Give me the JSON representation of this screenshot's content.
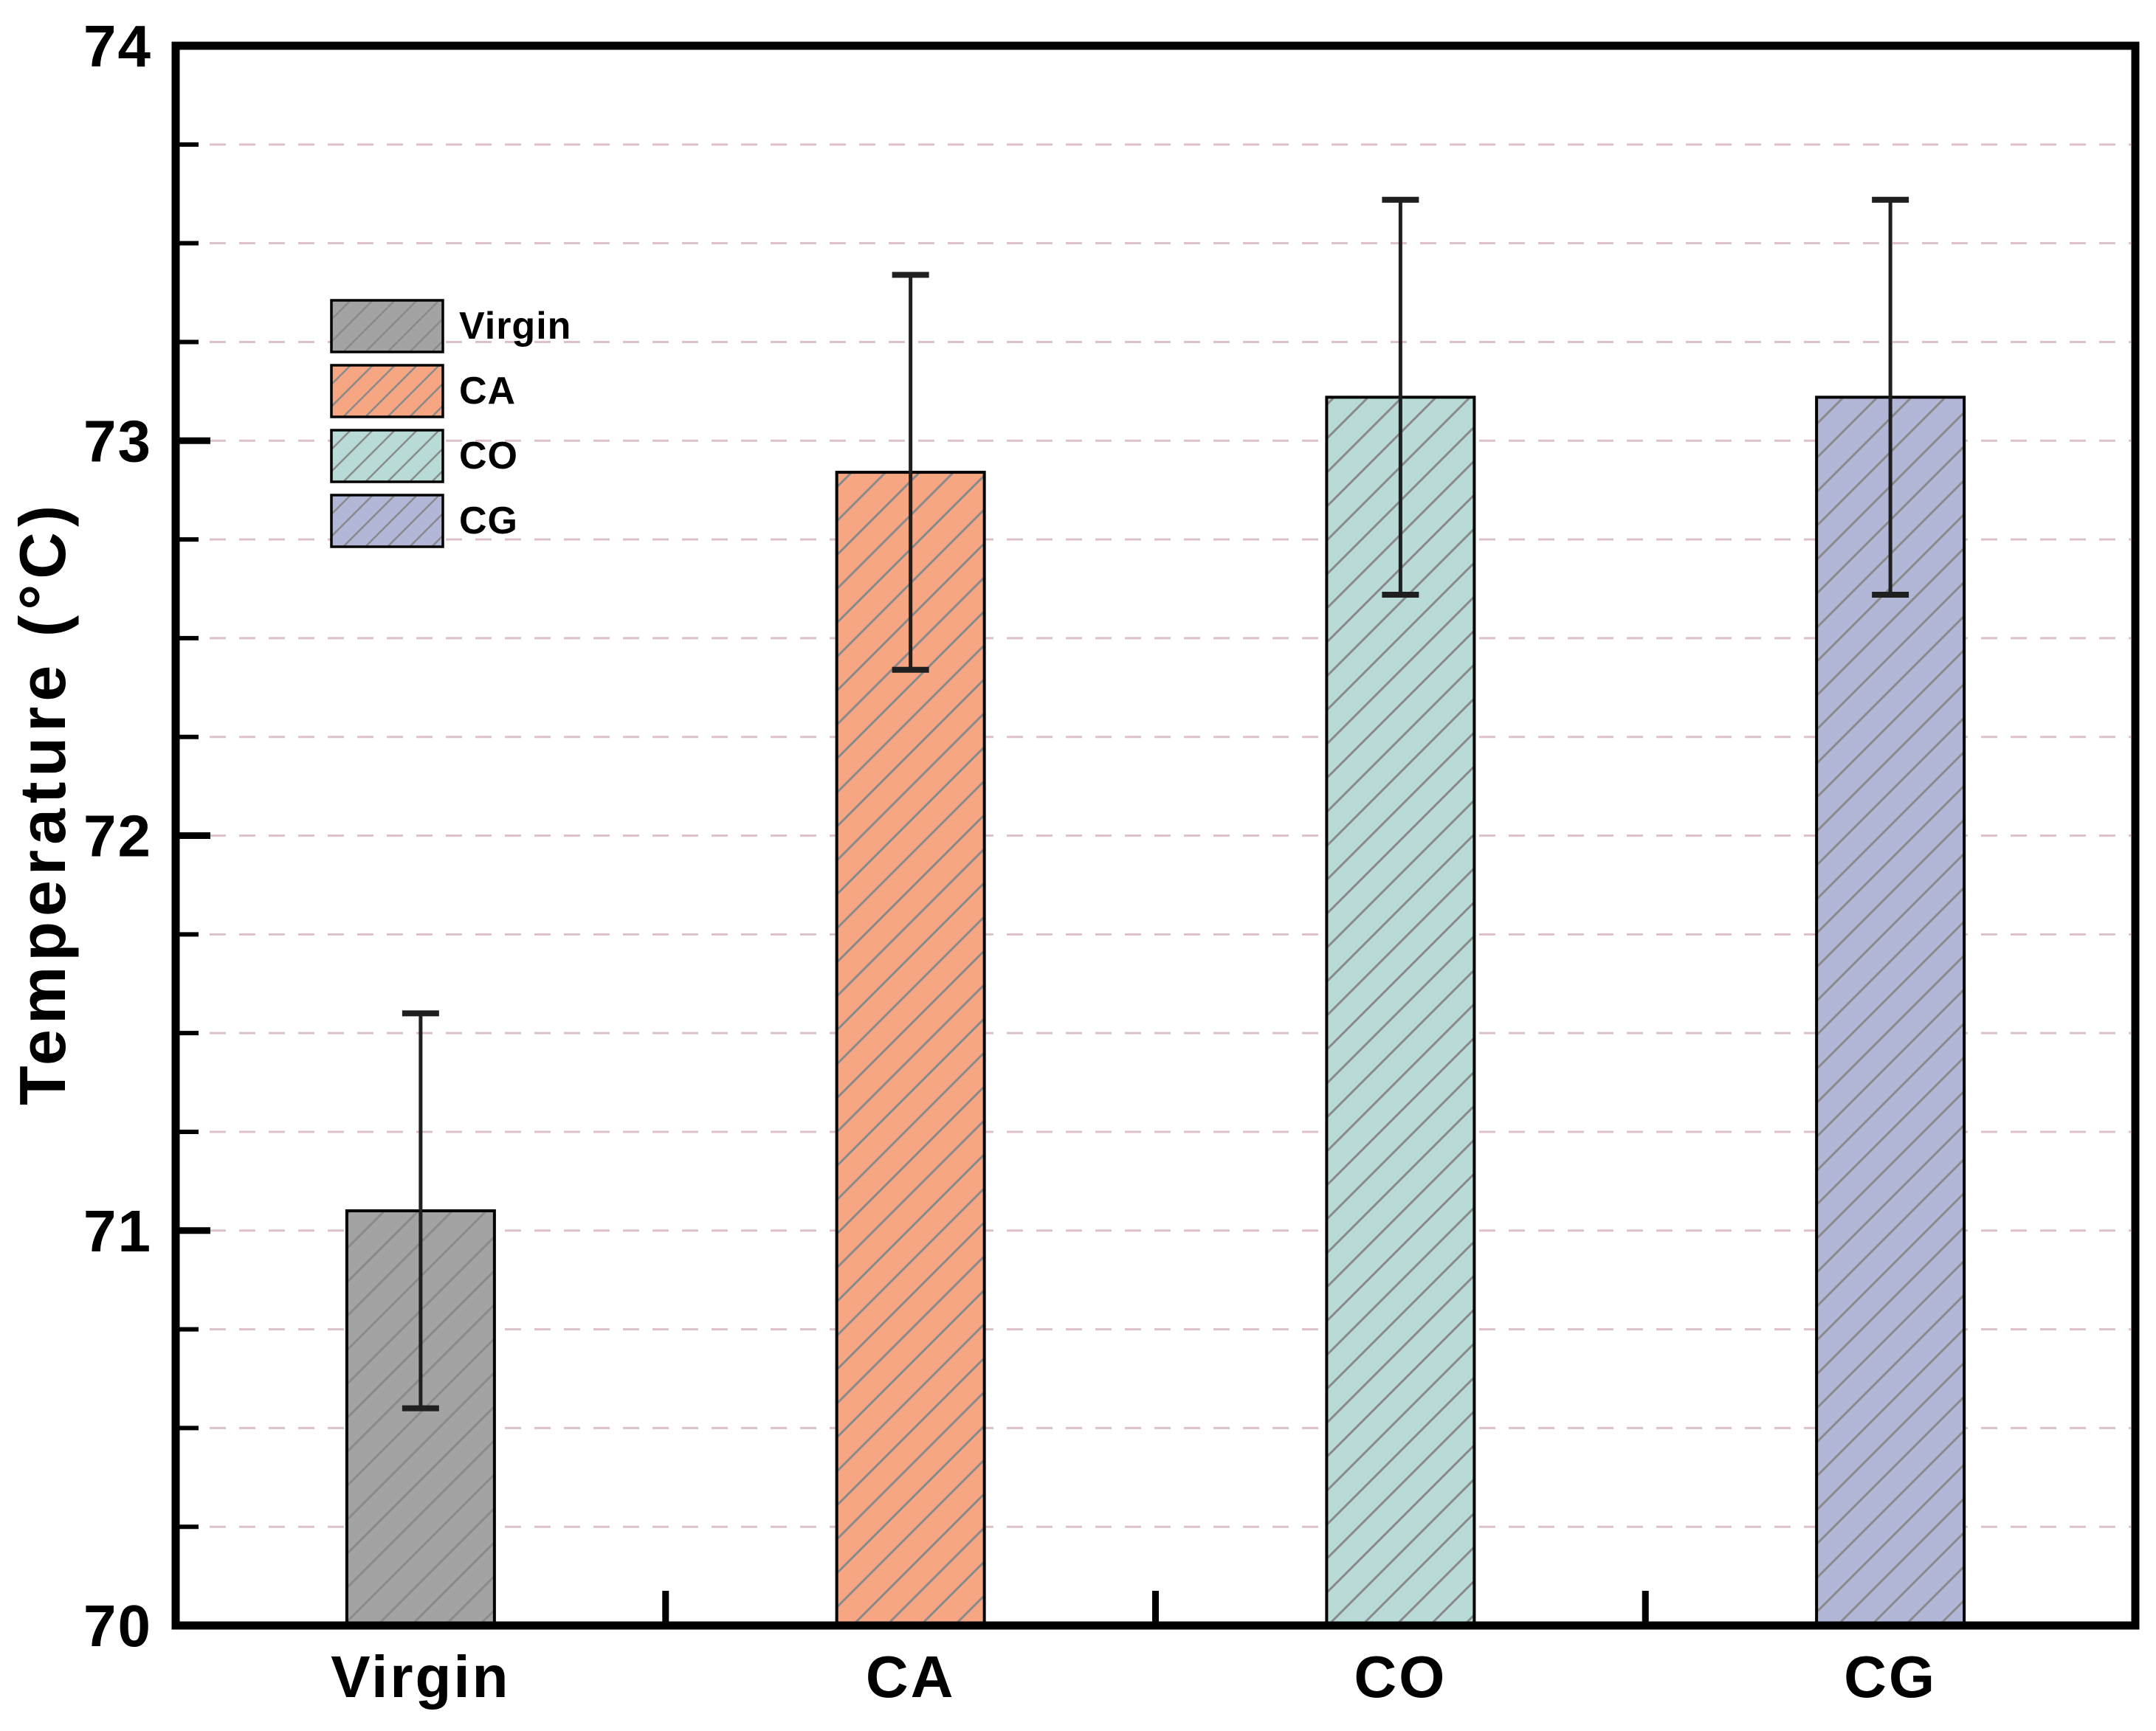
{
  "figure": {
    "background": "#ffffff",
    "frame_color": "#000000"
  },
  "chart_data": {
    "type": "bar",
    "title": "",
    "xlabel": "",
    "ylabel": "Temperature (°C)",
    "categories": [
      "Virgin",
      "CA",
      "CO",
      "CG"
    ],
    "values": [
      71.05,
      72.92,
      73.11,
      73.11
    ],
    "error_bars": [
      0.5,
      0.5,
      0.5,
      0.5
    ],
    "ylim": [
      70,
      74
    ],
    "ytick_labels": [
      "70",
      "71",
      "72",
      "73",
      "74"
    ],
    "ytick_major_step": 1,
    "ytick_minor_step": 0.25,
    "grid": {
      "horizontal": true,
      "style": "dashed",
      "step": 0.25,
      "color": "#dcc2c8"
    },
    "bar_colors": [
      "#a3a3a3",
      "#f7a683",
      "#b9dbd8",
      "#b2b7d8"
    ],
    "hatch": {
      "pattern": "diagonal-forward",
      "color": "#8a8a8a"
    },
    "axis_color": "#000000",
    "error_bar_color": "#1f1f1f",
    "legend": {
      "position": "upper-left-inside",
      "entries": [
        {
          "label": "Virgin",
          "color": "#a3a3a3"
        },
        {
          "label": "CA",
          "color": "#f7a683"
        },
        {
          "label": "CO",
          "color": "#b9dbd8"
        },
        {
          "label": "CG",
          "color": "#b2b7d8"
        }
      ]
    }
  }
}
